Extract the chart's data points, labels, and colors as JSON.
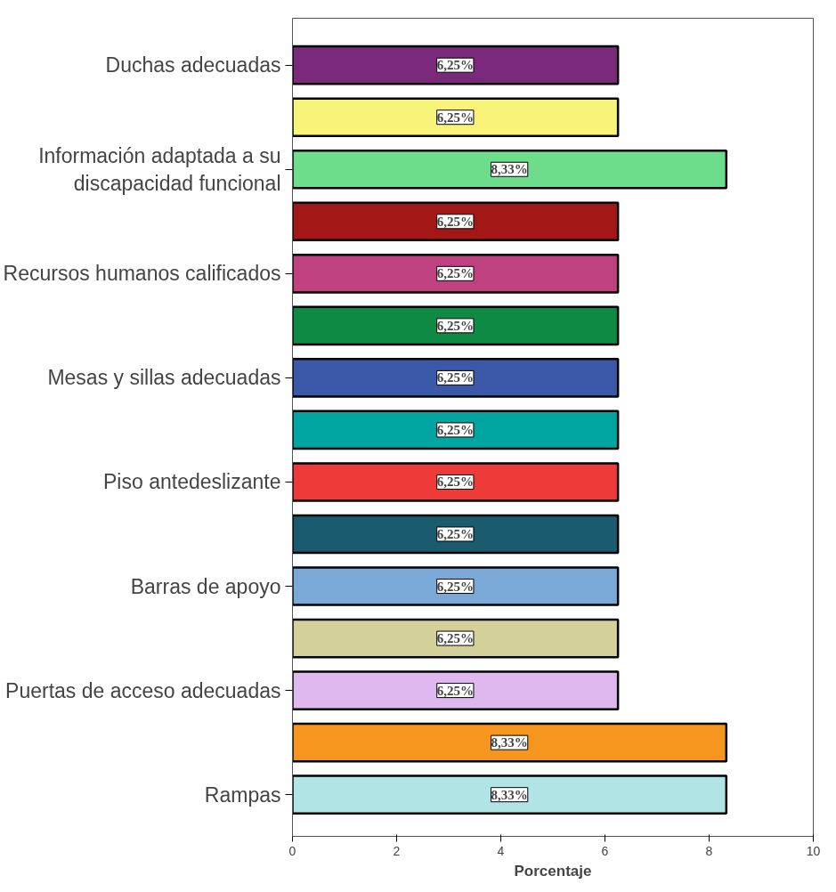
{
  "chart_data": {
    "type": "bar",
    "orientation": "horizontal",
    "xlabel": "Porcentaje",
    "categories": [
      "Duchas adecuadas",
      null,
      "Información adaptada a su discapacidad funcional",
      null,
      "Recursos humanos calificados",
      null,
      "Mesas y sillas adecuadas",
      null,
      "Piso antedeslizante",
      null,
      "Barras de apoyo",
      null,
      "Puertas de acceso adecuadas",
      null,
      "Rampas"
    ],
    "values": [
      6.25,
      6.25,
      8.33,
      6.25,
      6.25,
      6.25,
      6.25,
      6.25,
      6.25,
      6.25,
      6.25,
      6.25,
      6.25,
      8.33,
      8.33
    ],
    "colors": [
      "#7b2a7b",
      "#f8f47a",
      "#6edd8b",
      "#a31717",
      "#c0417f",
      "#0e8a45",
      "#3c58a8",
      "#00a5a1",
      "#ef3a3a",
      "#1a5b70",
      "#7aa9d8",
      "#d3d09a",
      "#dfb8ef",
      "#f7961e",
      "#b1e4e4"
    ],
    "value_labels": [
      "6,25%",
      "6,25%",
      "8,33%",
      "6,25%",
      "6,25%",
      "6,25%",
      "6,25%",
      "6,25%",
      "6,25%",
      "6,25%",
      "6,25%",
      "6,25%",
      "6,25%",
      "8,33%",
      "8,33%"
    ],
    "xlim": [
      0,
      10
    ],
    "xticks": [
      0,
      2,
      4,
      6,
      8,
      10
    ],
    "grid": false
  }
}
